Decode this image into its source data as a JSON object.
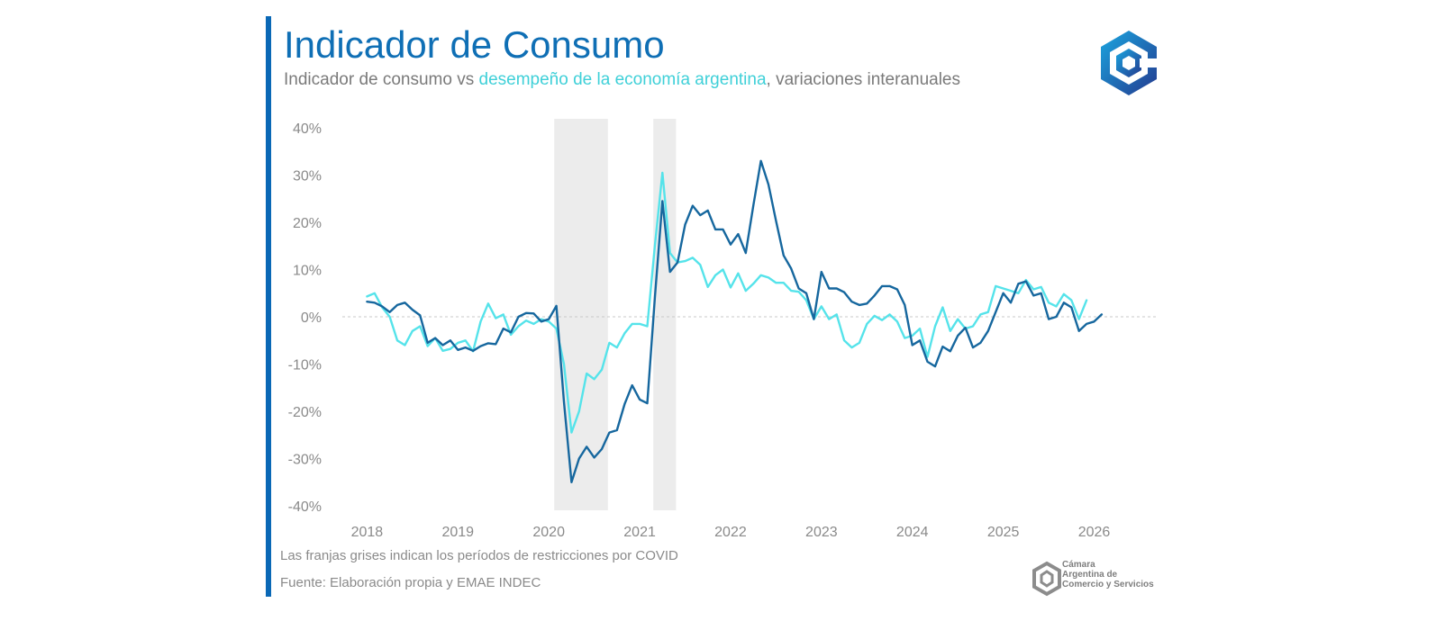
{
  "header": {
    "title": "Indicador de Consumo",
    "subtitle_prefix": "Indicador de consumo vs ",
    "subtitle_highlight": "desempeño de la economía argentina",
    "subtitle_suffix": ", variaciones interanuales"
  },
  "footer": {
    "note": "Las franjas grises indican los períodos de restricciones por COVID",
    "source": "Fuente: Elaboración propia y EMAE INDEC"
  },
  "org": {
    "line1": "Cámara",
    "line2": "Argentina de",
    "line3": "Comercio y Servicios"
  },
  "colors": {
    "accent": "#0a68b6",
    "consumo": "#16679e",
    "emae": "#55e3ea",
    "band": "#ececec"
  },
  "icons": {
    "logo": "cac-hexagon-logo-icon",
    "org": "cac-small-logo-icon"
  },
  "chart_data": {
    "type": "line",
    "title": "Indicador de Consumo",
    "xlabel": "",
    "ylabel": "",
    "ylim": [
      -40,
      40
    ],
    "yticks": [
      -40,
      -30,
      -20,
      -10,
      0,
      10,
      20,
      30,
      40
    ],
    "ytick_labels": [
      "-40%",
      "-30%",
      "-20%",
      "-10%",
      "0%",
      "10%",
      "20%",
      "30%",
      "40%"
    ],
    "xticks": [
      2018,
      2019,
      2020,
      2021,
      2022,
      2023,
      2024,
      2025,
      2026
    ],
    "xtick_labels": [
      "2018",
      "2019",
      "2020",
      "2021",
      "2022",
      "2023",
      "2024",
      "2025",
      "2026"
    ],
    "xlim": [
      2017.55,
      2026.55
    ],
    "grid": false,
    "reference_line": 0,
    "shaded_periods": [
      {
        "label": "COVID",
        "start": 2020.06,
        "end": 2020.65
      },
      {
        "label": "COVID",
        "start": 2021.15,
        "end": 2021.4
      }
    ],
    "start": 2018.0,
    "step_months": 1,
    "series": [
      {
        "name": "Indicador de consumo",
        "color": "#16679e",
        "values": [
          3.2,
          3,
          2.2,
          1,
          2.5,
          3,
          1.5,
          0.3,
          -5.5,
          -4.5,
          -6,
          -5,
          -7,
          -6.5,
          -7.2,
          -6.2,
          -5.6,
          -5.8,
          -2.5,
          -3.3,
          0,
          0.8,
          0.7,
          -1,
          -0.5,
          2.3,
          -18,
          -35,
          -30,
          -27.5,
          -29.8,
          -28,
          -24.5,
          -24,
          -18.5,
          -14.5,
          -17.5,
          -18.3,
          4,
          24.5,
          9.5,
          11.5,
          19.5,
          23.5,
          21.5,
          22.5,
          18.5,
          18.5,
          15.3,
          17.5,
          13.5,
          23.5,
          33,
          28,
          20.3,
          13,
          10.2,
          6,
          5,
          -0.5,
          9.5,
          6,
          6,
          5.2,
          3.2,
          2.5,
          2.8,
          4.5,
          6.5,
          6.5,
          5.8,
          2.5,
          -6,
          -5,
          -9.5,
          -10.5,
          -6.3,
          -7.3,
          -4,
          -2.3,
          -6.5,
          -5.5,
          -3,
          1,
          5,
          3,
          7,
          7.5,
          4.5,
          5,
          -0.5,
          0,
          3,
          2,
          -3,
          -1.5,
          -1,
          0.5
        ]
      },
      {
        "name": "Desempeño de la economía argentina (EMAE)",
        "color": "#55e3ea",
        "values": [
          4.3,
          5,
          2,
          0,
          -5,
          -6,
          -3,
          -2,
          -6.2,
          -4.5,
          -7.2,
          -6.8,
          -5.5,
          -5,
          -7.3,
          -1,
          2.8,
          -0.3,
          0.5,
          -3.8,
          -2,
          -0.8,
          -1.5,
          -0.5,
          -1,
          -2.5,
          -10,
          -24.5,
          -20,
          -12,
          -13.2,
          -11.2,
          -5.5,
          -6.5,
          -3.5,
          -1.5,
          -1.5,
          -2,
          15,
          30.5,
          13.5,
          11.5,
          11.8,
          12.5,
          11,
          6.3,
          8.8,
          10,
          6.2,
          9.2,
          5.5,
          7,
          8.8,
          8.3,
          7.2,
          7.2,
          5.5,
          5.3,
          3.5,
          -0.5,
          2.2,
          -0.5,
          0.5,
          -5,
          -6.5,
          -5.5,
          -1.5,
          0.2,
          -0.7,
          0.5,
          -1,
          -4.5,
          -4,
          -2.5,
          -8.5,
          -2,
          2,
          -3,
          -0.5,
          -2.5,
          -2,
          0.5,
          1,
          6.5,
          6,
          5.5,
          5,
          7.8,
          5.8,
          6.3,
          3,
          2.2,
          4.8,
          3.5,
          -0.5,
          3.5
        ]
      }
    ]
  }
}
